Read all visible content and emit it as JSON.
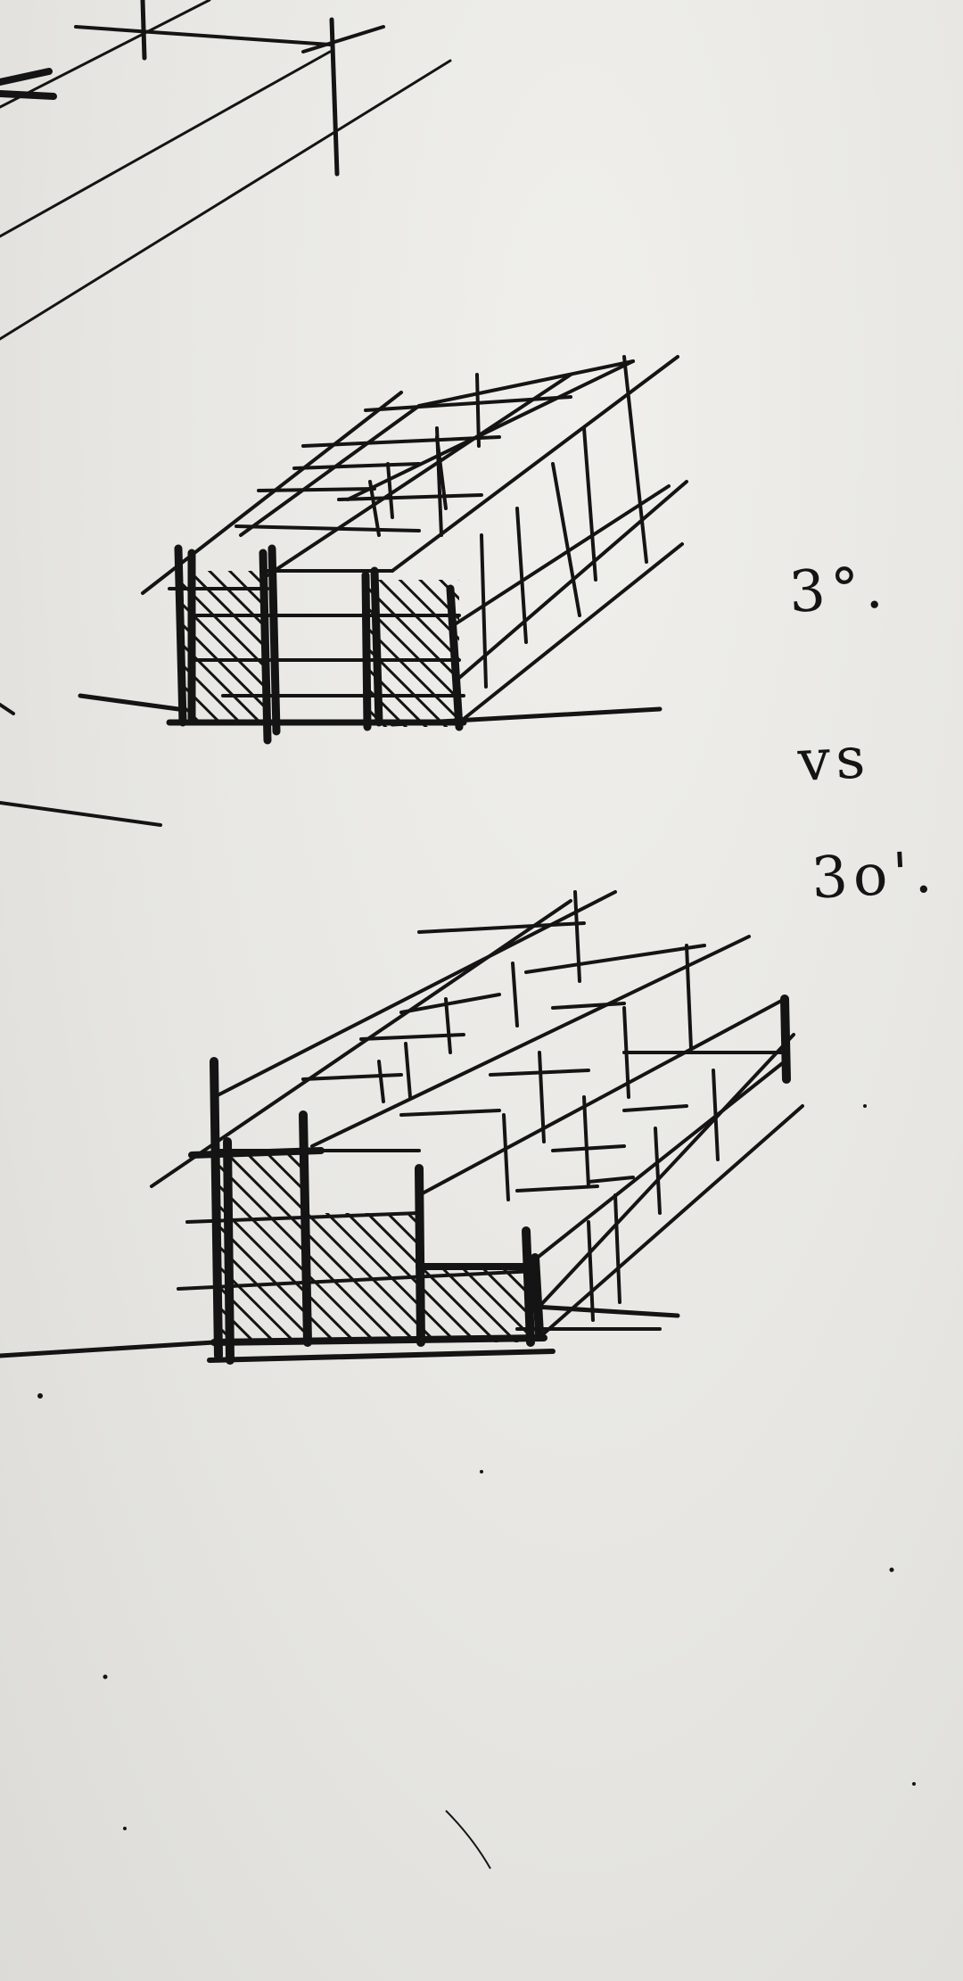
{
  "notes": {
    "top": "3°.",
    "middle": "vs",
    "bottom": "3o'."
  },
  "colors": {
    "paper": "#e9e8e5",
    "ink": "#141414"
  }
}
